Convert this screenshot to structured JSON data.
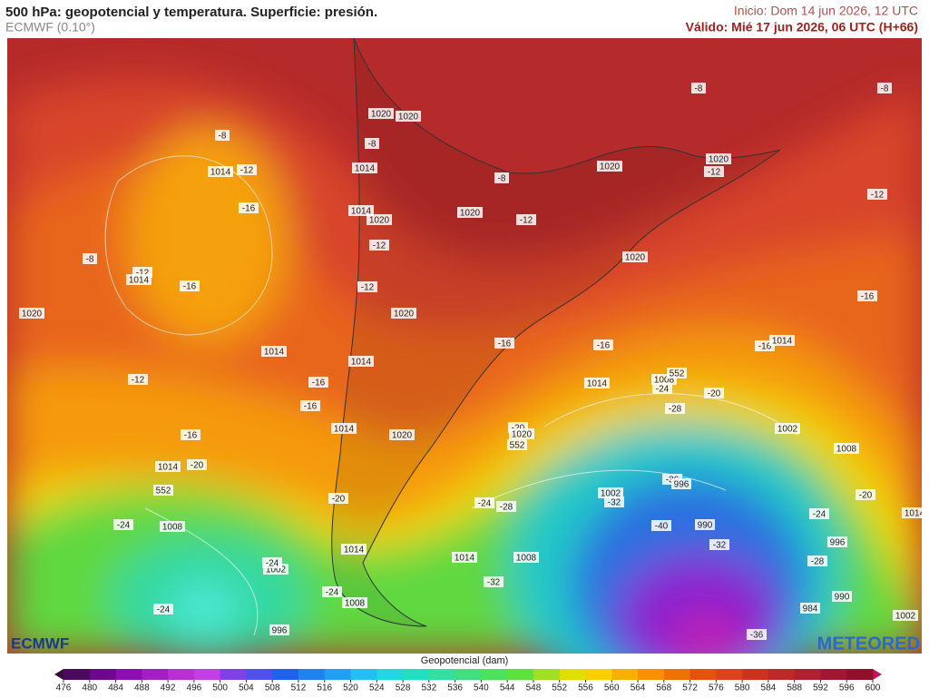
{
  "header": {
    "title": "500 hPa: geopotencial y temperatura. Superficie: presión.",
    "model": "ECMWF (0.10°)",
    "init": "Inicio: Dom 14 jun 2026, 12 UTC",
    "valid": "Válido: Mié 17 jun 2026, 06 UTC (H+66)"
  },
  "logos": {
    "left": "ECMWF",
    "right": "METEORED"
  },
  "map": {
    "labels": [
      1020,
      1020,
      -8,
      -8,
      1014,
      -12,
      1014,
      1020,
      -8,
      1020,
      -12,
      -12,
      -16,
      1014,
      1020,
      1020,
      -12,
      -12,
      -8,
      -12,
      1014,
      -16,
      -12,
      1020,
      -16,
      1020,
      1020,
      1014,
      1014,
      -16,
      -16,
      -16,
      1014,
      -12,
      -16,
      1014,
      1008,
      552,
      -24,
      -20,
      -16,
      -28,
      1014,
      1020,
      -20,
      1020,
      1002,
      -16,
      1008,
      1014,
      -20,
      -36,
      996,
      1002,
      -32,
      -20,
      -24,
      -28,
      -20,
      -24,
      1008,
      -40,
      990,
      -24,
      1014,
      996,
      -32,
      1014,
      1014,
      1008,
      -28,
      1002,
      -24,
      -32,
      -24,
      990,
      1008,
      -24,
      984,
      1002,
      996,
      -36,
      552,
      552,
      -8,
      -8
    ]
  },
  "colorbar": {
    "label": "Geopotencial (dam)",
    "ticks": [
      476,
      480,
      484,
      488,
      492,
      496,
      500,
      504,
      508,
      512,
      516,
      520,
      524,
      528,
      532,
      536,
      540,
      544,
      548,
      552,
      556,
      560,
      564,
      568,
      572,
      576,
      580,
      584,
      588,
      592,
      596,
      600
    ],
    "colors": [
      "#3a0a3a",
      "#4b0a5a",
      "#6a0a8a",
      "#8a10b0",
      "#a020c0",
      "#b830d0",
      "#c040e0",
      "#8040e8",
      "#5050f0",
      "#2060f0",
      "#2080f0",
      "#20a0f0",
      "#20c0f0",
      "#20d8e0",
      "#20e0c0",
      "#30e0a0",
      "#40e080",
      "#50e060",
      "#60e040",
      "#a0e020",
      "#e0e000",
      "#f8d000",
      "#f8b000",
      "#f89000",
      "#f07000",
      "#e85010",
      "#e04020",
      "#d03020",
      "#c02828",
      "#b02030",
      "#a01830",
      "#901028",
      "#c81060"
    ]
  }
}
